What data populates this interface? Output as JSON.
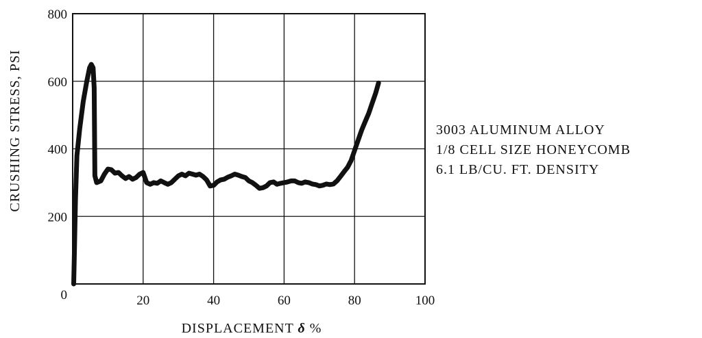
{
  "chart_data": {
    "type": "line",
    "title": "",
    "xlabel": {
      "prefix": "DISPLACEMENT ",
      "symbol": "δ",
      "suffix": " %"
    },
    "ylabel": "CRUSHING STRESS, PSI",
    "xlim": [
      0,
      100
    ],
    "ylim": [
      0,
      800
    ],
    "x_ticks": [
      {
        "value": 0,
        "label": "0"
      },
      {
        "value": 20,
        "label": "20"
      },
      {
        "value": 40,
        "label": "40"
      },
      {
        "value": 60,
        "label": "60"
      },
      {
        "value": 80,
        "label": "80"
      },
      {
        "value": 100,
        "label": "100"
      }
    ],
    "y_ticks": [
      {
        "value": 200,
        "label": "200"
      },
      {
        "value": 400,
        "label": "400"
      },
      {
        "value": 600,
        "label": "600"
      },
      {
        "value": 800,
        "label": "800"
      }
    ],
    "grid": true,
    "annotation": [
      "3003 ALUMINUM ALLOY",
      "1/8 CELL SIZE HONEYCOMB",
      "6.1 LB/CU. FT. DENSITY"
    ],
    "line_color": "#111111",
    "series": [
      {
        "values": [
          [
            0.3,
            0
          ],
          [
            0.5,
            100
          ],
          [
            0.8,
            250
          ],
          [
            1.2,
            380
          ],
          [
            2.0,
            460
          ],
          [
            3.0,
            540
          ],
          [
            4.0,
            600
          ],
          [
            4.8,
            640
          ],
          [
            5.3,
            650
          ],
          [
            5.8,
            640
          ],
          [
            6.1,
            580
          ],
          [
            6.2,
            450
          ],
          [
            6.3,
            320
          ],
          [
            6.8,
            300
          ],
          [
            8.0,
            305
          ],
          [
            9.0,
            325
          ],
          [
            10.0,
            340
          ],
          [
            11.0,
            338
          ],
          [
            12.0,
            328
          ],
          [
            13.0,
            330
          ],
          [
            14.0,
            320
          ],
          [
            15.0,
            312
          ],
          [
            16.0,
            318
          ],
          [
            17.0,
            310
          ],
          [
            18.0,
            315
          ],
          [
            19.0,
            325
          ],
          [
            20.0,
            330
          ],
          [
            21.0,
            300
          ],
          [
            22.0,
            295
          ],
          [
            23.0,
            300
          ],
          [
            24.0,
            298
          ],
          [
            25.0,
            305
          ],
          [
            26.0,
            300
          ],
          [
            27.0,
            295
          ],
          [
            28.0,
            300
          ],
          [
            29.0,
            310
          ],
          [
            30.0,
            320
          ],
          [
            31.0,
            325
          ],
          [
            32.0,
            320
          ],
          [
            33.0,
            328
          ],
          [
            34.0,
            325
          ],
          [
            35.0,
            322
          ],
          [
            36.0,
            325
          ],
          [
            37.0,
            318
          ],
          [
            38.0,
            308
          ],
          [
            39.0,
            290
          ],
          [
            40.0,
            292
          ],
          [
            41.0,
            302
          ],
          [
            42.0,
            308
          ],
          [
            43.0,
            310
          ],
          [
            44.0,
            316
          ],
          [
            45.0,
            320
          ],
          [
            46.0,
            325
          ],
          [
            47.0,
            322
          ],
          [
            48.0,
            318
          ],
          [
            49.0,
            315
          ],
          [
            50.0,
            305
          ],
          [
            51.0,
            300
          ],
          [
            52.0,
            292
          ],
          [
            53.0,
            283
          ],
          [
            54.0,
            285
          ],
          [
            55.0,
            290
          ],
          [
            56.0,
            300
          ],
          [
            57.0,
            302
          ],
          [
            58.0,
            295
          ],
          [
            59.0,
            298
          ],
          [
            60.0,
            300
          ],
          [
            61.0,
            302
          ],
          [
            62.0,
            305
          ],
          [
            63.0,
            305
          ],
          [
            64.0,
            300
          ],
          [
            65.0,
            298
          ],
          [
            66.0,
            302
          ],
          [
            67.0,
            300
          ],
          [
            68.0,
            296
          ],
          [
            69.0,
            294
          ],
          [
            70.0,
            290
          ],
          [
            71.0,
            292
          ],
          [
            72.0,
            296
          ],
          [
            73.0,
            294
          ],
          [
            74.0,
            296
          ],
          [
            75.0,
            305
          ],
          [
            76.0,
            318
          ],
          [
            77.0,
            332
          ],
          [
            78.0,
            345
          ],
          [
            79.0,
            365
          ],
          [
            80.0,
            395
          ],
          [
            81.0,
            425
          ],
          [
            82.0,
            455
          ],
          [
            83.0,
            480
          ],
          [
            84.0,
            505
          ],
          [
            85.0,
            535
          ],
          [
            86.0,
            565
          ],
          [
            86.8,
            595
          ]
        ]
      }
    ]
  }
}
